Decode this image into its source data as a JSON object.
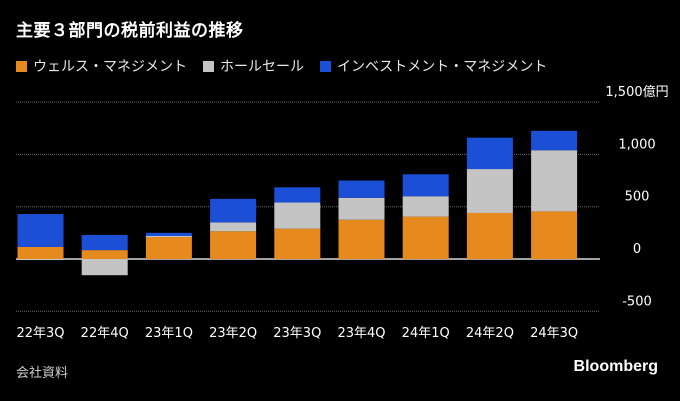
{
  "title": "主要３部門の税前利益の推移",
  "source": "会社資料",
  "brand": "Bloomberg",
  "colors": {
    "background": "#000000",
    "wealth": "#e68a1e",
    "wholesale": "#c4c4c4",
    "investment": "#1a4fd6",
    "grid": "#6b6b6b",
    "text": "#ffffff"
  },
  "chart_data": {
    "type": "bar",
    "stacked": true,
    "categories": [
      "22年3Q",
      "22年4Q",
      "23年1Q",
      "23年2Q",
      "23年3Q",
      "23年4Q",
      "24年1Q",
      "24年2Q",
      "24年3Q"
    ],
    "series": [
      {
        "name": "ウェルス・マネジメント",
        "color": "#e68a1e",
        "values": [
          115,
          85,
          210,
          265,
          290,
          375,
          405,
          440,
          455
        ]
      },
      {
        "name": "ホールセール",
        "color": "#c4c4c4",
        "values": [
          -10,
          -155,
          10,
          85,
          250,
          210,
          195,
          420,
          585
        ]
      },
      {
        "name": "インベストメント・マネジメント",
        "color": "#1a4fd6",
        "values": [
          315,
          145,
          30,
          225,
          145,
          165,
          210,
          300,
          185
        ]
      }
    ],
    "yticks": [
      {
        "value": 1500,
        "label": "1,500億円"
      },
      {
        "value": 1000,
        "label": "1,000"
      },
      {
        "value": 500,
        "label": "500"
      },
      {
        "value": 0,
        "label": "0"
      },
      {
        "value": -500,
        "label": "-500"
      }
    ],
    "ylim": [
      -500,
      1500
    ],
    "legend_position": "top",
    "grid": true
  }
}
